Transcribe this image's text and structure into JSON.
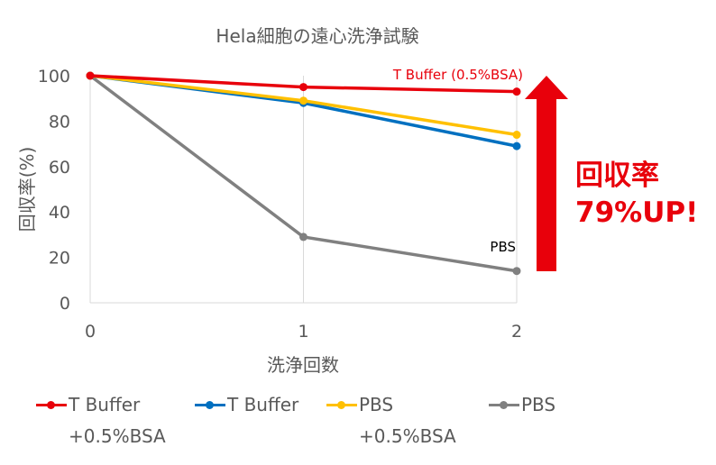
{
  "chart_data": {
    "type": "line",
    "title": "Hela細胞の遠心洗浄試験",
    "xlabel": "洗浄回数",
    "ylabel": "回収率(%)",
    "x": [
      0,
      1,
      2
    ],
    "x_tick_labels": [
      "0",
      "1",
      "2"
    ],
    "ylim": [
      0,
      100
    ],
    "y_ticks": [
      0,
      20,
      40,
      60,
      80,
      100
    ],
    "y_tick_labels": [
      "0",
      "20",
      "40",
      "60",
      "80",
      "100"
    ],
    "grid": "vertical",
    "series": [
      {
        "name": "T Buffer +0.5%BSA",
        "color": "#e8000b",
        "values": [
          100,
          95,
          93
        ]
      },
      {
        "name": "T Buffer",
        "color": "#0070c0",
        "values": [
          100,
          88,
          69
        ]
      },
      {
        "name": "PBS +0.5%BSA",
        "color": "#ffc000",
        "values": [
          100,
          89,
          74
        ]
      },
      {
        "name": "PBS",
        "color": "#808080",
        "values": [
          100,
          29,
          14
        ]
      }
    ],
    "annotations": [
      {
        "text": "T Buffer (0.5%BSA)",
        "color": "#e8000b"
      },
      {
        "text": "PBS",
        "color": "#000000"
      }
    ],
    "callout": {
      "line1": "回収率",
      "line2": "79%UP!",
      "color": "#e8000b"
    },
    "legend": {
      "placement": "bottom",
      "items": [
        {
          "label": "T Buffer",
          "sub": "+0.5%BSA",
          "color": "#e8000b"
        },
        {
          "label": "T Buffer",
          "sub": "",
          "color": "#0070c0"
        },
        {
          "label": "PBS",
          "sub": "+0.5%BSA",
          "color": "#ffc000"
        },
        {
          "label": "PBS",
          "sub": "",
          "color": "#808080"
        }
      ]
    }
  }
}
